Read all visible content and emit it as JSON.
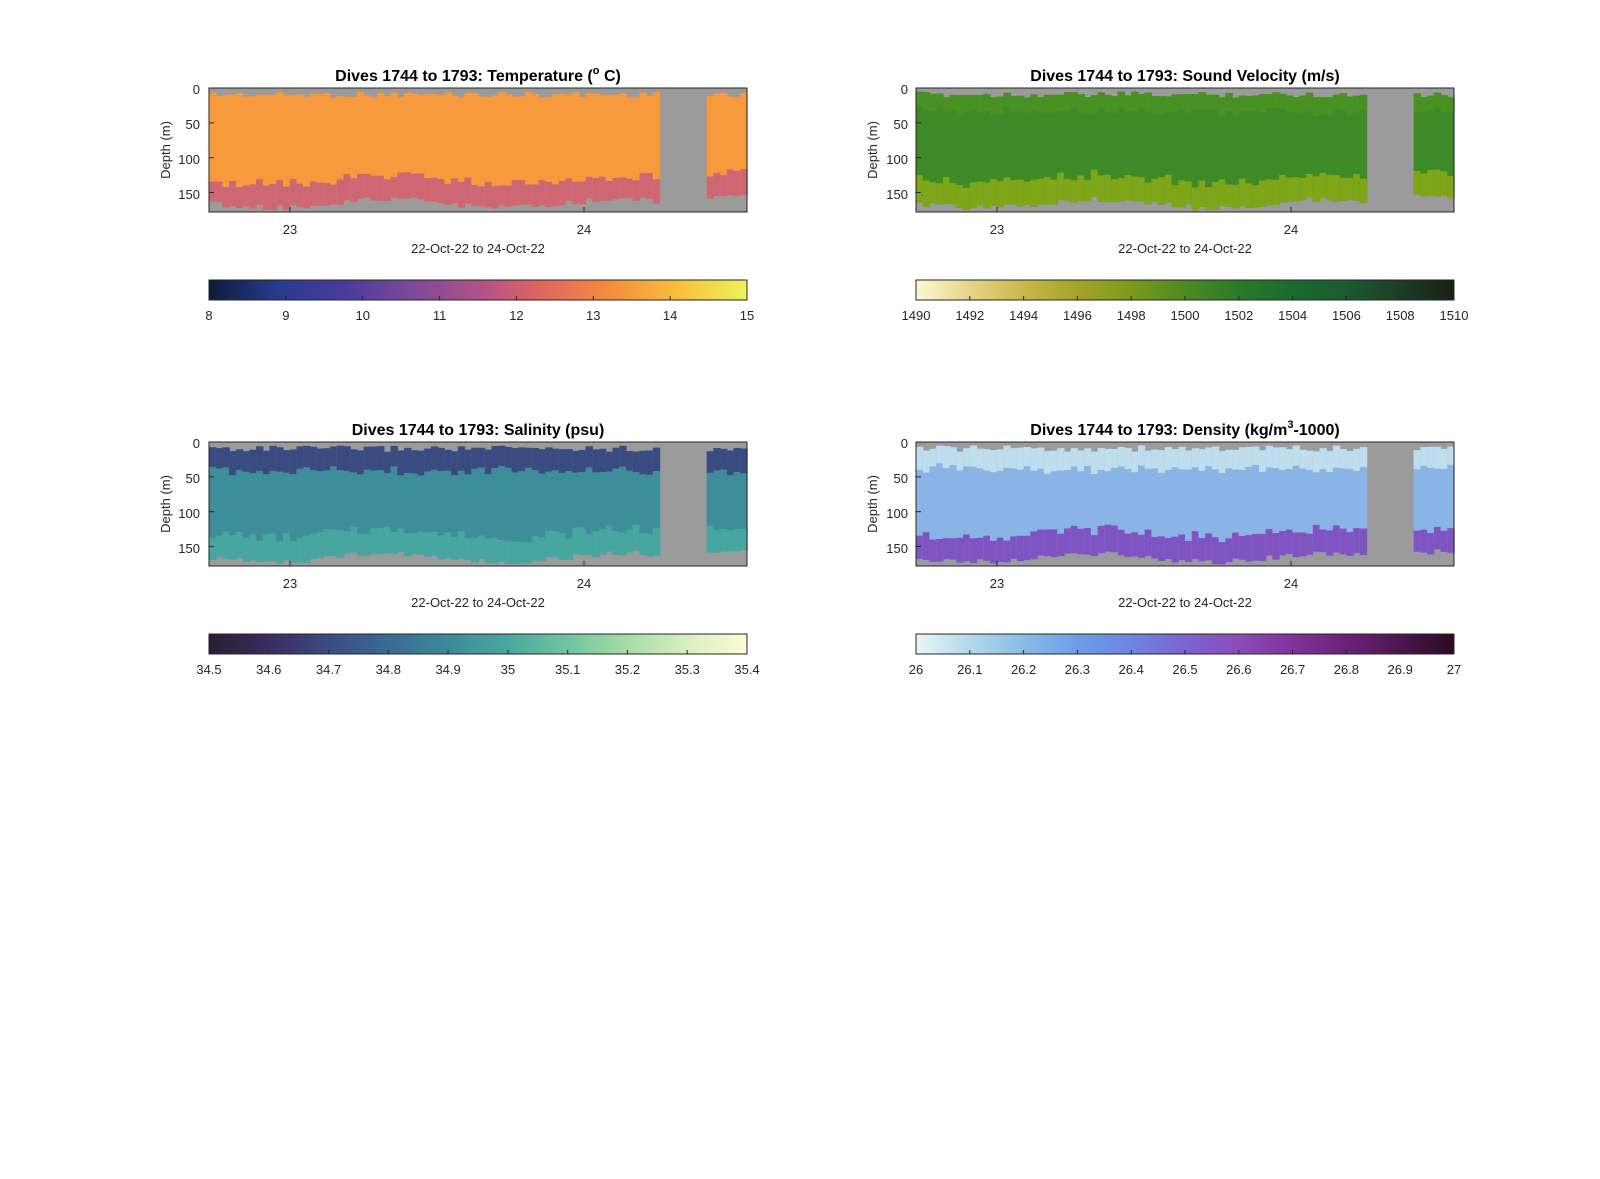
{
  "chart_data": [
    {
      "type": "heatmap",
      "title": "Dives 1744 to 1793: Temperature (",
      "title_super": "o",
      "title_suffix": " C)",
      "xlabel": "22-Oct-22 to 24-Oct-22",
      "ylabel": "Depth (m)",
      "xticks": [
        "23",
        "24"
      ],
      "yticks": [
        "0",
        "50",
        "100",
        "150"
      ],
      "ylim": [
        178,
        0
      ],
      "colorbar": {
        "ticks": [
          "8",
          "9",
          "10",
          "11",
          "12",
          "13",
          "14",
          "15"
        ],
        "range": [
          8,
          15
        ],
        "stops": [
          "#0d1b3a",
          "#283a8c",
          "#4a3a9c",
          "#7a4a9a",
          "#b05088",
          "#e0685e",
          "#f58e3c",
          "#f9c03c",
          "#eef25a"
        ]
      },
      "fill_color": "#f7993d",
      "bottom_color": "#c9607a",
      "bottom_band_m": 28
    },
    {
      "type": "heatmap",
      "title": "Dives 1744 to 1793: Sound Velocity (m/s)",
      "title_super": "",
      "title_suffix": "",
      "xlabel": "22-Oct-22 to 24-Oct-22",
      "ylabel": "Depth (m)",
      "xticks": [
        "23",
        "24"
      ],
      "yticks": [
        "0",
        "50",
        "100",
        "150"
      ],
      "ylim": [
        178,
        0
      ],
      "colorbar": {
        "ticks": [
          "1490",
          "1492",
          "1494",
          "1496",
          "1498",
          "1500",
          "1502",
          "1504",
          "1506",
          "1508",
          "1510"
        ],
        "range": [
          1490,
          1510
        ],
        "stops": [
          "#fdf8d2",
          "#e6d58a",
          "#c8b94a",
          "#a4a428",
          "#7a9a1c",
          "#4e8a22",
          "#2a7a2a",
          "#1a6a30",
          "#1c5a30",
          "#1e3c28",
          "#1a1f16"
        ]
      },
      "fill_color": "#3e8a26",
      "top_color": "#4a9222",
      "top_band_m": 20,
      "bottom_color": "#86a818",
      "bottom_band_m": 30
    },
    {
      "type": "heatmap",
      "title": "Dives 1744 to 1793: Salinity (psu)",
      "title_super": "",
      "title_suffix": "",
      "xlabel": "22-Oct-22 to 24-Oct-22",
      "ylabel": "Depth (m)",
      "xticks": [
        "23",
        "24"
      ],
      "yticks": [
        "0",
        "50",
        "100",
        "150"
      ],
      "ylim": [
        178,
        0
      ],
      "colorbar": {
        "ticks": [
          "34.5",
          "34.6",
          "34.7",
          "34.8",
          "34.9",
          "35",
          "35.1",
          "35.2",
          "35.3",
          "35.4"
        ],
        "range": [
          34.5,
          35.4
        ],
        "stops": [
          "#2a1e32",
          "#3a2c5e",
          "#3c4a84",
          "#3a6a94",
          "#3d8a9a",
          "#48a89e",
          "#70c4a0",
          "#a6dca8",
          "#d8efc0",
          "#fdfbd6"
        ]
      },
      "fill_color": "#3e8e9a",
      "top_color": "#3a3f7c",
      "top_band_m": 28,
      "bottom_color": "#48a8a0",
      "bottom_band_m": 30
    },
    {
      "type": "heatmap",
      "title": "Dives 1744 to 1793: Density (kg/m",
      "title_super": "3",
      "title_suffix": "-1000)",
      "xlabel": "22-Oct-22 to 24-Oct-22",
      "ylabel": "Depth (m)",
      "xticks": [
        "23",
        "24"
      ],
      "yticks": [
        "0",
        "50",
        "100",
        "150"
      ],
      "ylim": [
        178,
        0
      ],
      "colorbar": {
        "ticks": [
          "26",
          "26.1",
          "26.2",
          "26.3",
          "26.4",
          "26.5",
          "26.6",
          "26.7",
          "26.8",
          "26.9",
          "27"
        ],
        "range": [
          26,
          27
        ],
        "stops": [
          "#e9f6f6",
          "#b2d8ea",
          "#88bce6",
          "#6c9ee6",
          "#6e84e2",
          "#7c64d2",
          "#8a4cb8",
          "#82339a",
          "#6a2278",
          "#4c1650",
          "#2a0a22"
        ]
      },
      "fill_color": "#8ab4e6",
      "top_color": "#c8e4ee",
      "top_band_m": 25,
      "bottom_color": "#7e48be",
      "bottom_band_m": 30
    }
  ],
  "colors": {
    "missing": "#9b9b9b",
    "axis": "#262626"
  }
}
